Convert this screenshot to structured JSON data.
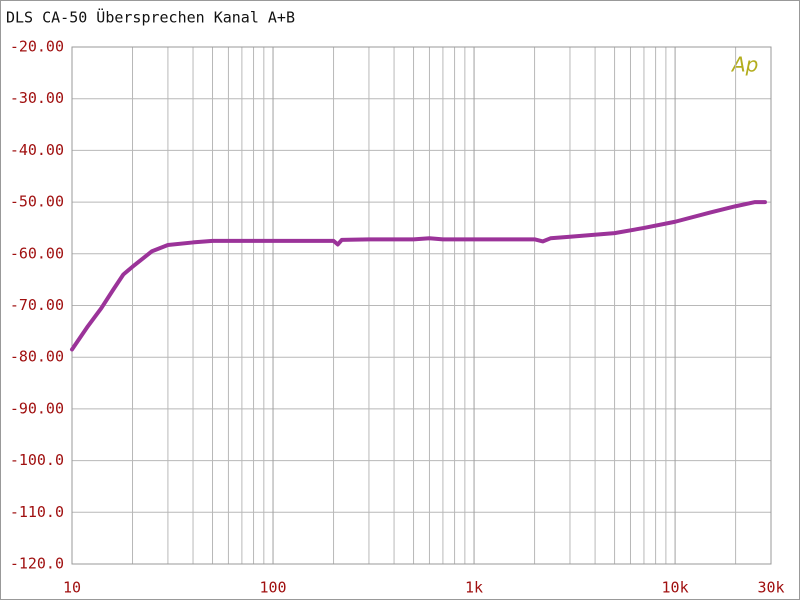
{
  "chart_data": {
    "type": "line",
    "title": "DLS CA-50 Übersprechen Kanal A+B",
    "annotation": "Ap",
    "x_scale": "log",
    "grid": true,
    "series": [
      {
        "color": "#9b3399",
        "x": [
          10,
          12,
          14,
          16,
          18,
          20,
          25,
          30,
          40,
          50,
          100,
          200,
          210,
          220,
          300,
          500,
          600,
          700,
          1000,
          2000,
          2200,
          2400,
          3000,
          5000,
          7000,
          10000,
          15000,
          20000,
          25000,
          28000
        ],
        "values": [
          -78.5,
          -74,
          -70.5,
          -67,
          -64,
          -62.5,
          -59.5,
          -58.3,
          -57.8,
          -57.5,
          -57.5,
          -57.5,
          -58.2,
          -57.3,
          -57.2,
          -57.2,
          -57,
          -57.2,
          -57.2,
          -57.2,
          -57.6,
          -57,
          -56.7,
          -56,
          -55,
          -53.8,
          -52,
          -50.8,
          -50,
          -50
        ]
      }
    ],
    "xlim": [
      10,
      30000
    ],
    "xticks": [
      10,
      100,
      {
        "value": 1000,
        "label": "1k"
      },
      {
        "value": 10000,
        "label": "10k"
      },
      {
        "value": 30000,
        "label": "30k"
      }
    ],
    "xminor": [
      20,
      30,
      40,
      50,
      60,
      70,
      80,
      90,
      200,
      300,
      400,
      500,
      600,
      700,
      800,
      900,
      2000,
      3000,
      4000,
      5000,
      6000,
      7000,
      8000,
      9000,
      20000
    ],
    "ylim": [
      -120,
      -20
    ],
    "yticks": [
      {
        "value": -20,
        "label": "-20.00"
      },
      {
        "value": -30,
        "label": "-30.00"
      },
      {
        "value": -40,
        "label": "-40.00"
      },
      {
        "value": -50,
        "label": "-50.00"
      },
      {
        "value": -60,
        "label": "-60.00"
      },
      {
        "value": -70,
        "label": "-70.00"
      },
      {
        "value": -80,
        "label": "-80.00"
      },
      {
        "value": -90,
        "label": "-90.00"
      },
      {
        "value": -100,
        "label": "-100.0"
      },
      {
        "value": -110,
        "label": "-110.0"
      },
      {
        "value": -120,
        "label": "-120.0"
      }
    ]
  }
}
